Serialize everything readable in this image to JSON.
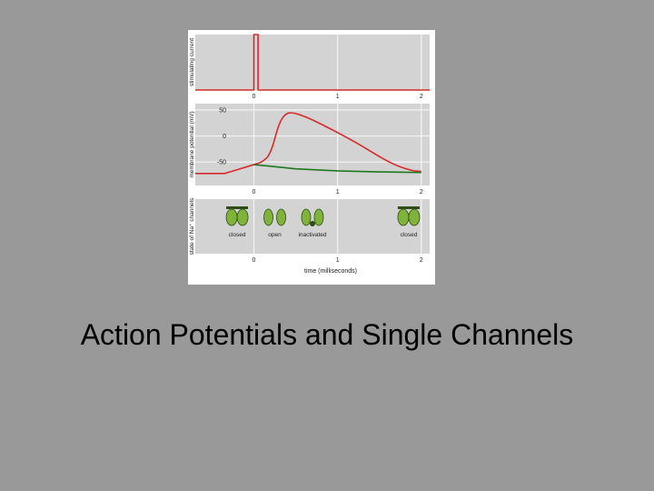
{
  "slide": {
    "title": "Action Potentials and Single Channels"
  },
  "colors": {
    "panel_bg": "#d3d3d3",
    "grid": "#f4f4f4",
    "stimulus": "#d62a2a",
    "na_potential": "#d62a2a",
    "leak_potential": "#1f7a1f",
    "channel": "#7fb33a",
    "channel_dark": "#2e4d14"
  },
  "chart_data": [
    {
      "type": "line",
      "ylabel": "stimulating current",
      "xticks": [
        "0",
        "1",
        "2"
      ],
      "xlim": [
        -0.7,
        2.1
      ],
      "ylim": [
        0,
        1
      ],
      "grid": true,
      "series": [
        {
          "x": [
            -0.7,
            0.0,
            0.0,
            0.05,
            0.05,
            2.1
          ],
          "y": [
            0,
            0,
            1,
            1,
            0,
            0
          ]
        }
      ]
    },
    {
      "type": "line",
      "ylabel": "membrane potential (mV)",
      "yticks": [
        "50",
        "0",
        "-50"
      ],
      "ytick_values": [
        50,
        0,
        -50
      ],
      "xticks": [
        "0",
        "1",
        "2"
      ],
      "xlim": [
        -0.7,
        2.1
      ],
      "ylim": [
        -95,
        62
      ],
      "grid": true,
      "series": [
        {
          "x": [
            -0.7,
            0.0,
            0.0,
            0.1,
            0.2,
            0.3,
            0.38,
            0.45,
            0.55,
            0.7,
            0.9,
            1.1,
            1.3,
            1.5,
            1.7,
            1.9,
            2.0
          ],
          "y": [
            -72,
            -72,
            -55,
            -50,
            -35,
            25,
            43,
            45,
            41,
            31,
            15,
            -2,
            -20,
            -40,
            -57,
            -67,
            -68
          ]
        },
        {
          "x": [
            0.0,
            0.2,
            0.5,
            1.0,
            1.5,
            2.0
          ],
          "y": [
            -55,
            -58,
            -63,
            -67,
            -69,
            -70
          ]
        }
      ]
    },
    {
      "type": "table",
      "ylabel": "state of Na⁺ channels",
      "xlabel": "time (milliseconds)",
      "xticks": [
        "0",
        "1",
        "2"
      ],
      "xlim": [
        -0.7,
        2.1
      ],
      "states": [
        {
          "label": "closed",
          "t": -0.2
        },
        {
          "label": "open",
          "t": 0.25
        },
        {
          "label": "inactivated",
          "t": 0.7
        },
        {
          "label": "closed",
          "t": 1.85
        }
      ]
    }
  ]
}
